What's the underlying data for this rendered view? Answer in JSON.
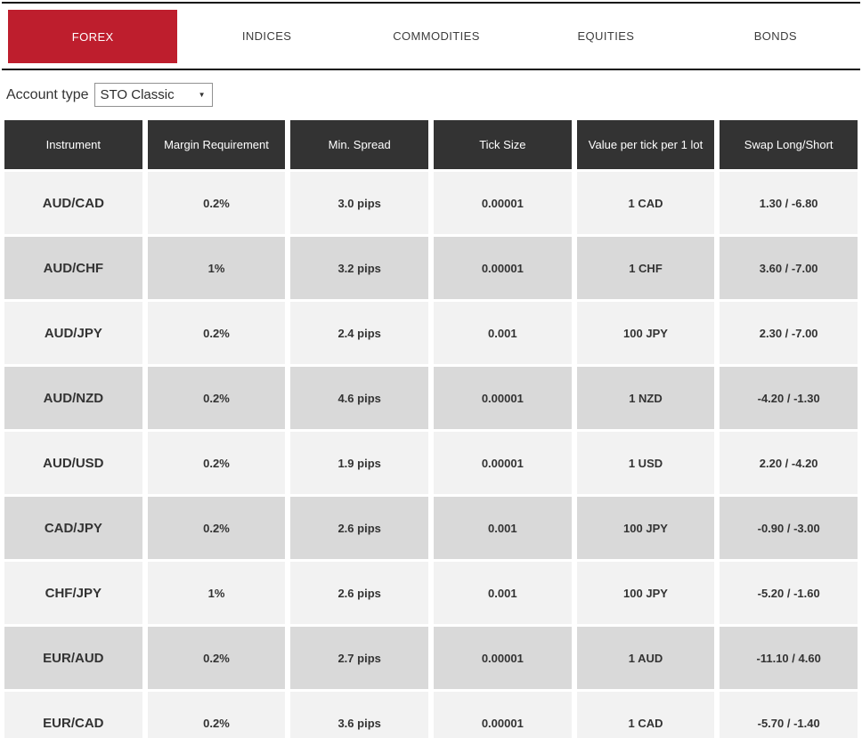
{
  "colors": {
    "accent_red": "#be1e2d",
    "header_dark": "#333333",
    "row_light": "#f2f2f2",
    "row_dark": "#d9d9d9"
  },
  "tabs": {
    "items": [
      {
        "label": "FOREX",
        "active": true
      },
      {
        "label": "INDICES",
        "active": false
      },
      {
        "label": "COMMODITIES",
        "active": false
      },
      {
        "label": "EQUITIES",
        "active": false
      },
      {
        "label": "BONDS",
        "active": false
      }
    ]
  },
  "account": {
    "label": "Account type",
    "selected_option": "STO Classic",
    "dropdown_arrow": "▼"
  },
  "table": {
    "columns": [
      "Instrument",
      "Margin Requirement",
      "Min. Spread",
      "Tick Size",
      "Value per tick per 1 lot",
      "Swap Long/Short"
    ],
    "rows": [
      [
        "AUD/CAD",
        "0.2%",
        "3.0 pips",
        "0.00001",
        "1 CAD",
        "1.30 / -6.80"
      ],
      [
        "AUD/CHF",
        "1%",
        "3.2 pips",
        "0.00001",
        "1 CHF",
        "3.60 / -7.00"
      ],
      [
        "AUD/JPY",
        "0.2%",
        "2.4 pips",
        "0.001",
        "100 JPY",
        "2.30 / -7.00"
      ],
      [
        "AUD/NZD",
        "0.2%",
        "4.6 pips",
        "0.00001",
        "1 NZD",
        "-4.20 / -1.30"
      ],
      [
        "AUD/USD",
        "0.2%",
        "1.9 pips",
        "0.00001",
        "1 USD",
        "2.20 / -4.20"
      ],
      [
        "CAD/JPY",
        "0.2%",
        "2.6 pips",
        "0.001",
        "100 JPY",
        "-0.90 / -3.00"
      ],
      [
        "CHF/JPY",
        "1%",
        "2.6 pips",
        "0.001",
        "100 JPY",
        "-5.20 / -1.60"
      ],
      [
        "EUR/AUD",
        "0.2%",
        "2.7 pips",
        "0.00001",
        "1 AUD",
        "-11.10 / 4.60"
      ],
      [
        "EUR/CAD",
        "0.2%",
        "3.6 pips",
        "0.00001",
        "1 CAD",
        "-5.70 / -1.40"
      ]
    ]
  }
}
